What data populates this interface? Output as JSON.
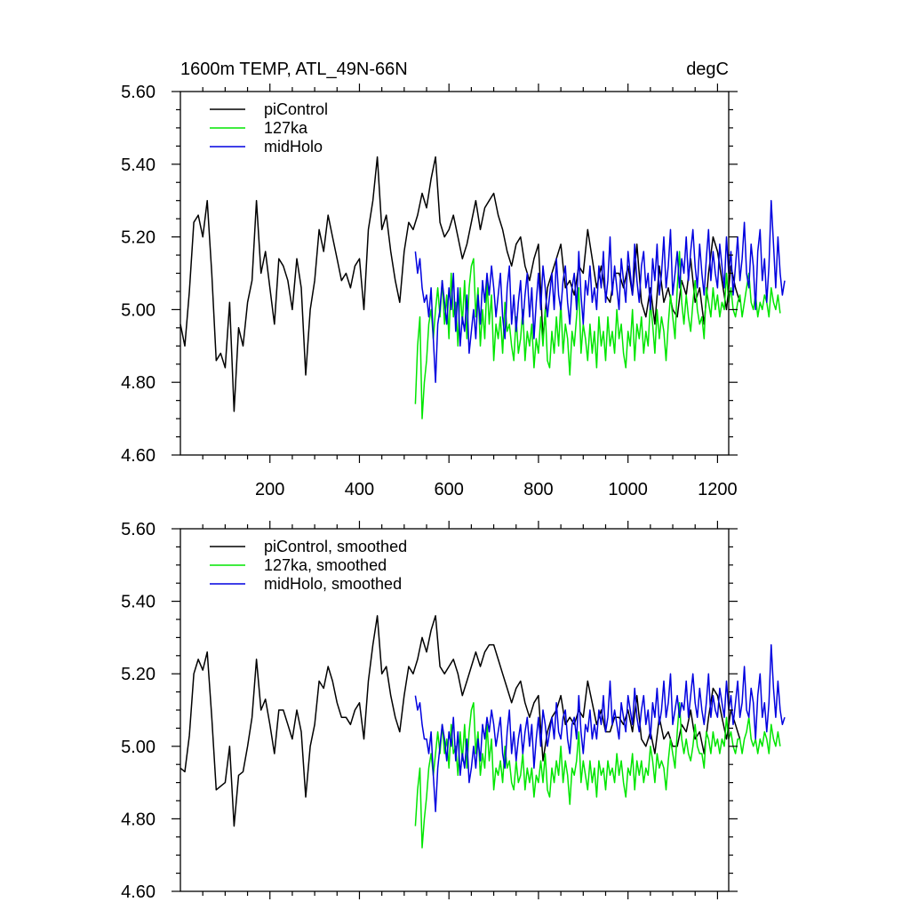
{
  "chart_data": [
    {
      "type": "line",
      "title_left": "1600m TEMP, ATL_49N-66N",
      "title_right": "degC",
      "xlabel": "",
      "ylabel": "",
      "xlim": [
        0,
        1225
      ],
      "ylim": [
        4.6,
        5.6
      ],
      "x_ticks": [
        200,
        400,
        600,
        800,
        1000,
        1200
      ],
      "x_tick_labels": [
        "200",
        "400",
        "600",
        "800",
        "1000",
        "1200"
      ],
      "y_ticks": [
        4.6,
        4.8,
        5.0,
        5.2,
        5.4,
        5.6
      ],
      "y_tick_labels": [
        "4.60",
        "4.80",
        "5.00",
        "5.20",
        "5.40",
        "5.60"
      ],
      "legend_position": "top-left",
      "series": [
        {
          "name": "piControl",
          "color": "#000000",
          "x0": 0,
          "dx": 10,
          "values": [
            4.96,
            4.9,
            5.05,
            5.24,
            5.26,
            5.2,
            5.3,
            5.1,
            4.86,
            4.88,
            4.84,
            5.02,
            4.72,
            4.95,
            4.9,
            5.02,
            5.08,
            5.3,
            5.1,
            5.16,
            5.06,
            4.96,
            5.14,
            5.12,
            5.08,
            5.0,
            5.14,
            5.06,
            4.82,
            5.0,
            5.08,
            5.22,
            5.16,
            5.26,
            5.2,
            5.14,
            5.08,
            5.1,
            5.06,
            5.12,
            5.14,
            5.0,
            5.22,
            5.3,
            5.42,
            5.22,
            5.26,
            5.16,
            5.08,
            5.02,
            5.16,
            5.24,
            5.22,
            5.26,
            5.32,
            5.28,
            5.36,
            5.42,
            5.24,
            5.2,
            5.22,
            5.26,
            5.2,
            5.14,
            5.18,
            5.24,
            5.3,
            5.22,
            5.28,
            5.3,
            5.32,
            5.26,
            5.22,
            5.16,
            5.12,
            5.18,
            5.2,
            5.12,
            5.08,
            5.14,
            5.18,
            4.92,
            5.06,
            5.1,
            5.14,
            5.18,
            5.06,
            5.08,
            5.04,
            5.12,
            5.1,
            5.22,
            5.14,
            5.06,
            5.12,
            5.04,
            5.02,
            5.1,
            5.1,
            5.06,
            5.12,
            5.04,
            5.18,
            5.02,
            4.98,
            5.06,
            4.96,
            5.12,
            5.02,
            5.06,
            5.0,
            4.98,
            5.08,
            5.04,
            5.14,
            5.02,
            5.06,
            4.96,
            5.1,
            5.2,
            5.16,
            5.08,
            5.0,
            5.12,
            5.06,
            5.02
          ]
        },
        {
          "name": "127ka",
          "color": "#00e600",
          "x0": 525,
          "dx": 5,
          "values": [
            4.74,
            4.9,
            4.98,
            4.7,
            4.8,
            4.86,
            4.96,
            5.0,
            4.92,
            5.0,
            5.06,
            4.98,
            5.08,
            4.96,
            5.04,
            4.92,
            5.1,
            4.98,
            5.02,
            4.9,
            5.06,
            4.96,
            5.08,
            4.92,
            5.06,
            5.12,
            5.14,
            4.98,
            5.06,
            4.9,
            5.0,
            4.92,
            5.08,
            4.96,
            5.04,
            4.86,
            4.96,
            4.92,
            4.98,
            4.88,
            5.02,
            4.94,
            4.96,
            4.9,
            4.86,
            4.98,
            4.88,
            4.92,
            5.0,
            4.86,
            4.94,
            4.9,
            4.96,
            4.84,
            4.92,
            4.88,
            4.98,
            4.9,
            5.0,
            4.86,
            4.84,
            4.94,
            4.88,
            4.98,
            4.9,
            5.02,
            4.88,
            4.96,
            4.92,
            4.82,
            4.94,
            4.9,
            4.98,
            5.06,
            4.88,
            4.96,
            4.92,
            4.86,
            4.96,
            4.88,
            4.94,
            4.84,
            4.98,
            4.9,
            4.94,
            4.86,
            4.98,
            4.9,
            4.94,
            4.88,
            5.0,
            4.92,
            4.96,
            4.88,
            4.84,
            4.94,
            4.9,
            5.0,
            4.86,
            4.96,
            4.92,
            4.98,
            4.88,
            4.94,
            4.9,
            5.02,
            4.96,
            4.88,
            5.0,
            4.92,
            4.98,
            4.94,
            4.86,
            4.96,
            5.04,
            4.98,
            4.92,
            5.06,
            5.16,
            5.02,
            4.96,
            5.04,
            4.98,
            4.94,
            5.02,
            5.08,
            5.0,
            4.96,
            4.98,
            4.92,
            5.06,
            5.02,
            4.98,
            5.06,
            5.0,
            5.04,
            4.98,
            5.02,
            5.0,
            5.1,
            5.02,
            5.06,
            5.0,
            4.98,
            5.02,
            5.04,
            4.98,
            5.02,
            5.06,
            5.1,
            5.02,
            5.0,
            5.04,
            4.98,
            5.02,
            5.0,
            5.04,
            5.02,
            4.98,
            5.06,
            5.02,
            5.0,
            5.04,
            4.99
          ]
        },
        {
          "name": "midHolo",
          "color": "#0000e0",
          "x0": 525,
          "dx": 5,
          "values": [
            5.16,
            5.1,
            5.14,
            5.06,
            5.02,
            5.04,
            4.98,
            5.06,
            4.92,
            4.8,
            4.96,
            5.0,
            5.08,
            5.02,
            4.96,
            5.06,
            5.0,
            5.1,
            4.94,
            5.06,
            4.9,
            4.98,
            4.94,
            5.04,
            4.88,
            4.94,
            5.0,
            4.92,
            5.04,
            4.96,
            5.08,
            5.02,
            5.1,
            5.04,
            5.12,
            5.06,
            4.98,
            5.04,
            5.1,
            4.98,
            4.92,
            5.06,
            5.12,
            4.96,
            5.04,
            4.94,
            5.02,
            5.08,
            4.96,
            5.04,
            5.1,
            4.98,
            5.06,
            4.92,
            5.02,
            5.1,
            5.0,
            5.12,
            5.06,
            4.98,
            5.04,
            5.1,
            5.0,
            5.14,
            5.04,
            5.0,
            5.08,
            5.12,
            5.02,
            4.96,
            5.06,
            5.1,
            5.0,
            5.16,
            5.04,
            4.96,
            5.08,
            5.04,
            5.12,
            5.02,
            5.06,
            5.0,
            5.12,
            5.06,
            5.16,
            5.02,
            5.08,
            5.2,
            5.04,
            5.12,
            5.06,
            5.0,
            5.14,
            5.08,
            5.02,
            5.16,
            5.1,
            5.04,
            5.18,
            5.08,
            5.02,
            5.12,
            5.16,
            5.06,
            5.1,
            5.0,
            5.14,
            5.08,
            5.18,
            5.04,
            5.1,
            5.2,
            5.06,
            5.12,
            5.22,
            5.04,
            5.1,
            5.16,
            5.06,
            5.14,
            5.1,
            5.2,
            5.08,
            5.16,
            5.22,
            5.12,
            5.06,
            5.18,
            5.1,
            5.04,
            5.14,
            5.22,
            5.08,
            5.16,
            5.1,
            5.06,
            5.18,
            5.12,
            5.06,
            5.2,
            5.1,
            5.16,
            5.04,
            5.12,
            5.2,
            5.08,
            5.14,
            5.24,
            5.1,
            5.06,
            5.18,
            5.12,
            5.0,
            5.16,
            5.22,
            5.08,
            5.14,
            5.02,
            5.12,
            5.3,
            5.18,
            5.06,
            5.2,
            5.1,
            5.04,
            5.08
          ]
        }
      ]
    },
    {
      "type": "line",
      "xlabel": "",
      "ylabel": "",
      "xlim": [
        0,
        1225
      ],
      "ylim": [
        4.6,
        5.6
      ],
      "x_ticks": [
        200,
        400,
        600,
        800,
        1000,
        1200
      ],
      "y_ticks": [
        4.6,
        4.8,
        5.0,
        5.2,
        5.4,
        5.6
      ],
      "y_tick_labels": [
        "4.60",
        "4.80",
        "5.00",
        "5.20",
        "5.40",
        "5.60"
      ],
      "legend_position": "top-left",
      "series": [
        {
          "name": "piControl, smoothed",
          "color": "#000000",
          "x0": 0,
          "dx": 10,
          "values": [
            4.94,
            4.93,
            5.03,
            5.2,
            5.24,
            5.21,
            5.26,
            5.08,
            4.88,
            4.89,
            4.9,
            5.0,
            4.78,
            4.92,
            4.93,
            5.0,
            5.08,
            5.24,
            5.1,
            5.13,
            5.06,
            4.98,
            5.1,
            5.1,
            5.06,
            5.02,
            5.1,
            5.04,
            4.86,
            5.0,
            5.06,
            5.18,
            5.16,
            5.22,
            5.18,
            5.12,
            5.08,
            5.08,
            5.06,
            5.1,
            5.12,
            5.02,
            5.18,
            5.28,
            5.36,
            5.2,
            5.22,
            5.14,
            5.08,
            5.04,
            5.14,
            5.22,
            5.2,
            5.24,
            5.3,
            5.26,
            5.32,
            5.36,
            5.22,
            5.2,
            5.22,
            5.24,
            5.2,
            5.14,
            5.18,
            5.22,
            5.26,
            5.22,
            5.26,
            5.28,
            5.28,
            5.24,
            5.2,
            5.16,
            5.12,
            5.16,
            5.18,
            5.12,
            5.08,
            5.12,
            5.14,
            4.96,
            5.04,
            5.08,
            5.1,
            5.14,
            5.06,
            5.08,
            5.06,
            5.1,
            5.08,
            5.18,
            5.12,
            5.06,
            5.1,
            5.04,
            5.04,
            5.08,
            5.08,
            5.06,
            5.1,
            5.04,
            5.14,
            5.02,
            5.0,
            5.04,
            4.98,
            5.08,
            5.02,
            5.04,
            5.0,
            5.0,
            5.06,
            5.04,
            5.1,
            5.02,
            5.04,
            4.98,
            5.08,
            5.16,
            5.14,
            5.08,
            5.02,
            5.1,
            5.06,
            5.02
          ]
        },
        {
          "name": "127ka, smoothed",
          "color": "#00e600",
          "x0": 525,
          "dx": 5,
          "values": [
            4.78,
            4.88,
            4.94,
            4.72,
            4.8,
            4.86,
            4.94,
            4.98,
            4.92,
            4.98,
            5.04,
            4.98,
            5.06,
            4.98,
            5.02,
            4.94,
            5.06,
            4.98,
            5.0,
            4.92,
            5.04,
            4.96,
            5.06,
            4.94,
            5.04,
            5.1,
            5.12,
            4.98,
            5.04,
            4.92,
            4.98,
            4.94,
            5.06,
            4.96,
            5.02,
            4.88,
            4.94,
            4.92,
            4.96,
            4.9,
            5.0,
            4.94,
            4.96,
            4.9,
            4.88,
            4.96,
            4.9,
            4.92,
            4.98,
            4.88,
            4.94,
            4.9,
            4.94,
            4.86,
            4.92,
            4.9,
            4.96,
            4.9,
            4.98,
            4.88,
            4.86,
            4.94,
            4.9,
            4.96,
            4.92,
            5.0,
            4.9,
            4.96,
            4.92,
            4.84,
            4.94,
            4.92,
            4.96,
            5.04,
            4.9,
            4.96,
            4.92,
            4.88,
            4.96,
            4.9,
            4.94,
            4.86,
            4.96,
            4.92,
            4.94,
            4.88,
            4.96,
            4.92,
            4.94,
            4.9,
            4.98,
            4.92,
            4.96,
            4.9,
            4.86,
            4.94,
            4.92,
            4.98,
            4.88,
            4.96,
            4.92,
            4.96,
            4.9,
            4.94,
            4.92,
            5.0,
            4.96,
            4.9,
            4.98,
            4.94,
            4.96,
            4.94,
            4.88,
            4.96,
            5.02,
            4.98,
            4.94,
            5.04,
            5.12,
            5.02,
            4.98,
            5.02,
            4.98,
            4.96,
            5.0,
            5.06,
            5.0,
            4.98,
            4.98,
            4.94,
            5.04,
            5.02,
            4.98,
            5.04,
            5.0,
            5.02,
            4.98,
            5.02,
            5.0,
            5.08,
            5.02,
            5.04,
            5.0,
            4.98,
            5.02,
            5.02,
            4.98,
            5.02,
            5.04,
            5.08,
            5.02,
            5.0,
            5.02,
            4.98,
            5.02,
            5.0,
            5.04,
            5.02,
            4.98,
            5.06,
            5.02,
            5.0,
            5.04,
            5.0
          ]
        },
        {
          "name": "midHolo, smoothed",
          "color": "#0000e0",
          "x0": 525,
          "dx": 5,
          "values": [
            5.14,
            5.1,
            5.12,
            5.06,
            5.02,
            5.02,
            4.98,
            5.04,
            4.92,
            4.82,
            4.94,
            5.0,
            5.06,
            5.02,
            4.96,
            5.04,
            5.0,
            5.08,
            4.96,
            5.04,
            4.92,
            4.98,
            4.94,
            5.02,
            4.9,
            4.94,
            5.0,
            4.94,
            5.02,
            4.96,
            5.06,
            5.02,
            5.08,
            5.04,
            5.1,
            5.06,
            5.0,
            5.04,
            5.08,
            4.98,
            4.94,
            5.04,
            5.1,
            4.98,
            5.04,
            4.96,
            5.02,
            5.06,
            4.98,
            5.04,
            5.08,
            5.0,
            5.06,
            4.94,
            5.02,
            5.08,
            5.0,
            5.1,
            5.06,
            5.0,
            5.04,
            5.08,
            5.02,
            5.12,
            5.04,
            5.02,
            5.08,
            5.1,
            5.02,
            4.98,
            5.06,
            5.08,
            5.02,
            5.14,
            5.04,
            4.98,
            5.06,
            5.04,
            5.1,
            5.02,
            5.06,
            5.02,
            5.1,
            5.06,
            5.14,
            5.04,
            5.08,
            5.18,
            5.06,
            5.1,
            5.06,
            5.02,
            5.12,
            5.08,
            5.04,
            5.14,
            5.1,
            5.06,
            5.16,
            5.08,
            5.04,
            5.1,
            5.14,
            5.06,
            5.1,
            5.02,
            5.12,
            5.08,
            5.16,
            5.06,
            5.1,
            5.18,
            5.08,
            5.12,
            5.2,
            5.06,
            5.1,
            5.14,
            5.08,
            5.12,
            5.1,
            5.18,
            5.08,
            5.14,
            5.2,
            5.12,
            5.08,
            5.16,
            5.1,
            5.06,
            5.12,
            5.2,
            5.08,
            5.14,
            5.1,
            5.08,
            5.16,
            5.12,
            5.08,
            5.18,
            5.1,
            5.14,
            5.06,
            5.12,
            5.18,
            5.08,
            5.12,
            5.22,
            5.1,
            5.08,
            5.16,
            5.12,
            5.02,
            5.14,
            5.2,
            5.08,
            5.12,
            5.04,
            5.12,
            5.28,
            5.16,
            5.08,
            5.18,
            5.1,
            5.06,
            5.08
          ]
        }
      ]
    }
  ]
}
